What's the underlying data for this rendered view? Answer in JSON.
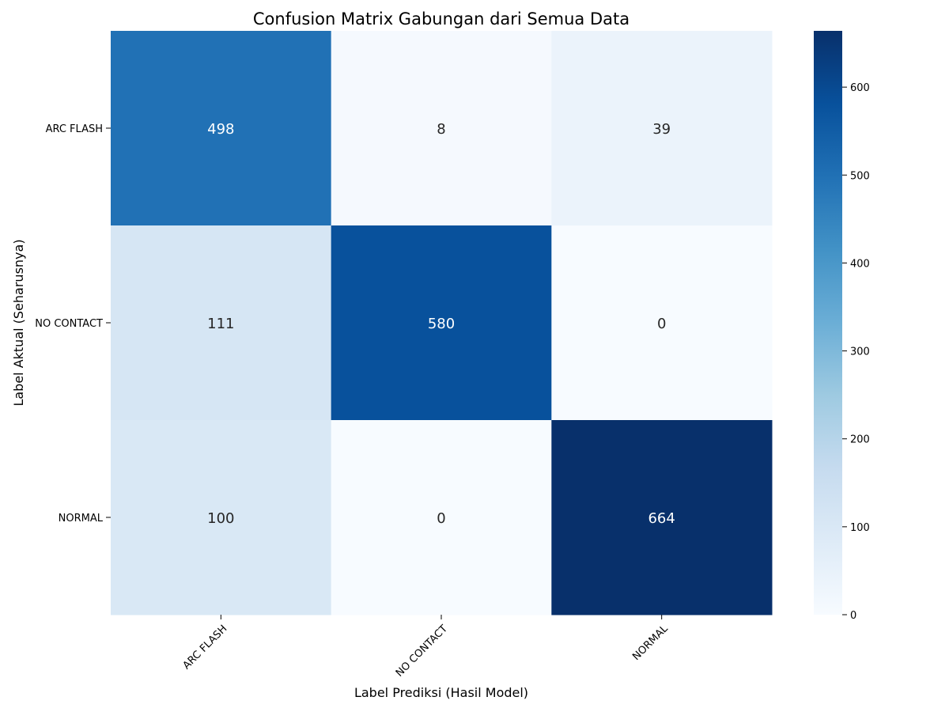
{
  "chart_data": {
    "type": "heatmap",
    "title": "Confusion Matrix Gabungan dari Semua Data",
    "xlabel": "Label Prediksi (Hasil Model)",
    "ylabel": "Label Aktual (Seharusnya)",
    "x_categories": [
      "ARC FLASH",
      "NO CONTACT",
      "NORMAL"
    ],
    "y_categories": [
      "ARC FLASH",
      "NO CONTACT",
      "NORMAL"
    ],
    "values": [
      [
        498,
        8,
        39
      ],
      [
        111,
        580,
        0
      ],
      [
        100,
        0,
        664
      ]
    ],
    "colormap": "Blues",
    "colorbar": {
      "range": [
        0,
        664
      ],
      "ticks": [
        0,
        100,
        200,
        300,
        400,
        500,
        600
      ]
    },
    "colormap_colors": [
      "#f7fbff",
      "#deebf7",
      "#c6dbef",
      "#9ecae1",
      "#6baed6",
      "#4292c6",
      "#2171b5",
      "#08519c",
      "#08306b"
    ],
    "annotation_light_color": "#ffffff",
    "annotation_dark_color": "#262626"
  }
}
